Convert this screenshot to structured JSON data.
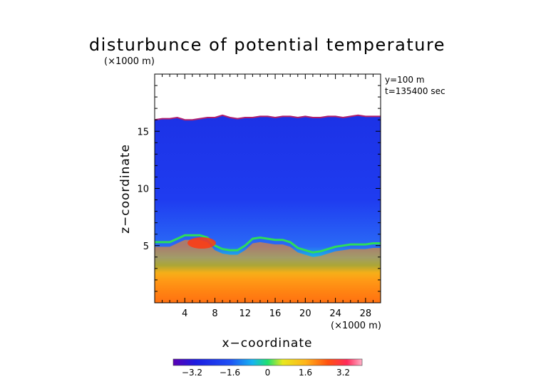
{
  "chart_data": {
    "type": "heatmap",
    "title": "disturbunce of potential temperature",
    "unit_note": "(×1000 m)",
    "annotations": [
      "y=100 m",
      "t=135400 sec"
    ],
    "xlabel": "x−coordinate",
    "xunit": "(×1000 m)",
    "ylabel": "z−coordinate",
    "xlim": [
      0,
      30
    ],
    "ylim": [
      0,
      20
    ],
    "xticks": [
      4,
      8,
      12,
      16,
      20,
      24,
      28
    ],
    "yticks": [
      5,
      10,
      15
    ],
    "grid": false,
    "model_top_height": [
      16.0,
      16.1,
      16.1,
      16.2,
      16.0,
      16.0,
      16.1,
      16.2,
      16.2,
      16.4,
      16.2,
      16.1,
      16.2,
      16.2,
      16.3,
      16.3,
      16.2,
      16.3,
      16.3,
      16.2,
      16.3,
      16.2,
      16.2,
      16.3,
      16.3,
      16.2,
      16.3,
      16.4,
      16.3,
      16.3,
      16.3
    ],
    "stable_layer_height": [
      5.3,
      5.3,
      5.3,
      5.6,
      5.9,
      5.9,
      5.9,
      5.7,
      5.0,
      4.7,
      4.6,
      4.6,
      5.0,
      5.6,
      5.7,
      5.6,
      5.5,
      5.5,
      5.3,
      4.8,
      4.6,
      4.4,
      4.5,
      4.7,
      4.9,
      5.0,
      5.1,
      5.1,
      5.1,
      5.2,
      5.2
    ],
    "colorbar": {
      "min": -4.0,
      "max": 4.0,
      "tick_values": [
        -3.2,
        -1.6,
        0,
        1.6,
        3.2
      ],
      "tick_labels": [
        "−3.2",
        "−1.6",
        "0",
        "1.6",
        "3.2"
      ]
    }
  }
}
